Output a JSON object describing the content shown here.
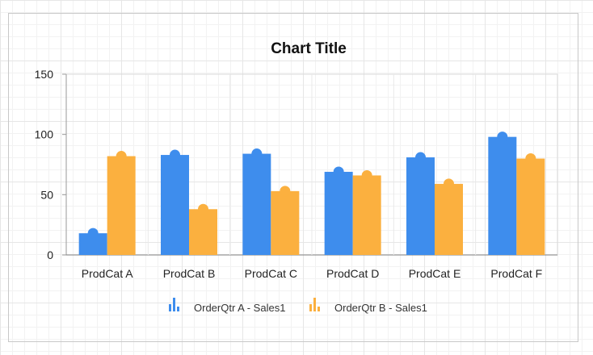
{
  "chart_data": {
    "type": "bar",
    "title": "Chart Title",
    "categories": [
      "ProdCat A",
      "ProdCat B",
      "ProdCat C",
      "ProdCat D",
      "ProdCat E",
      "ProdCat F"
    ],
    "series": [
      {
        "name": "OrderQtr A - Sales1",
        "color": "#3e8ded",
        "values": [
          18,
          83,
          84,
          69,
          81,
          98
        ]
      },
      {
        "name": "OrderQtr B - Sales1",
        "color": "#fbb03f",
        "values": [
          82,
          38,
          53,
          66,
          59,
          80
        ]
      }
    ],
    "y_ticks": [
      0,
      50,
      100,
      150
    ],
    "ylim": [
      0,
      150
    ],
    "grid": false,
    "legend_position": "bottom"
  }
}
